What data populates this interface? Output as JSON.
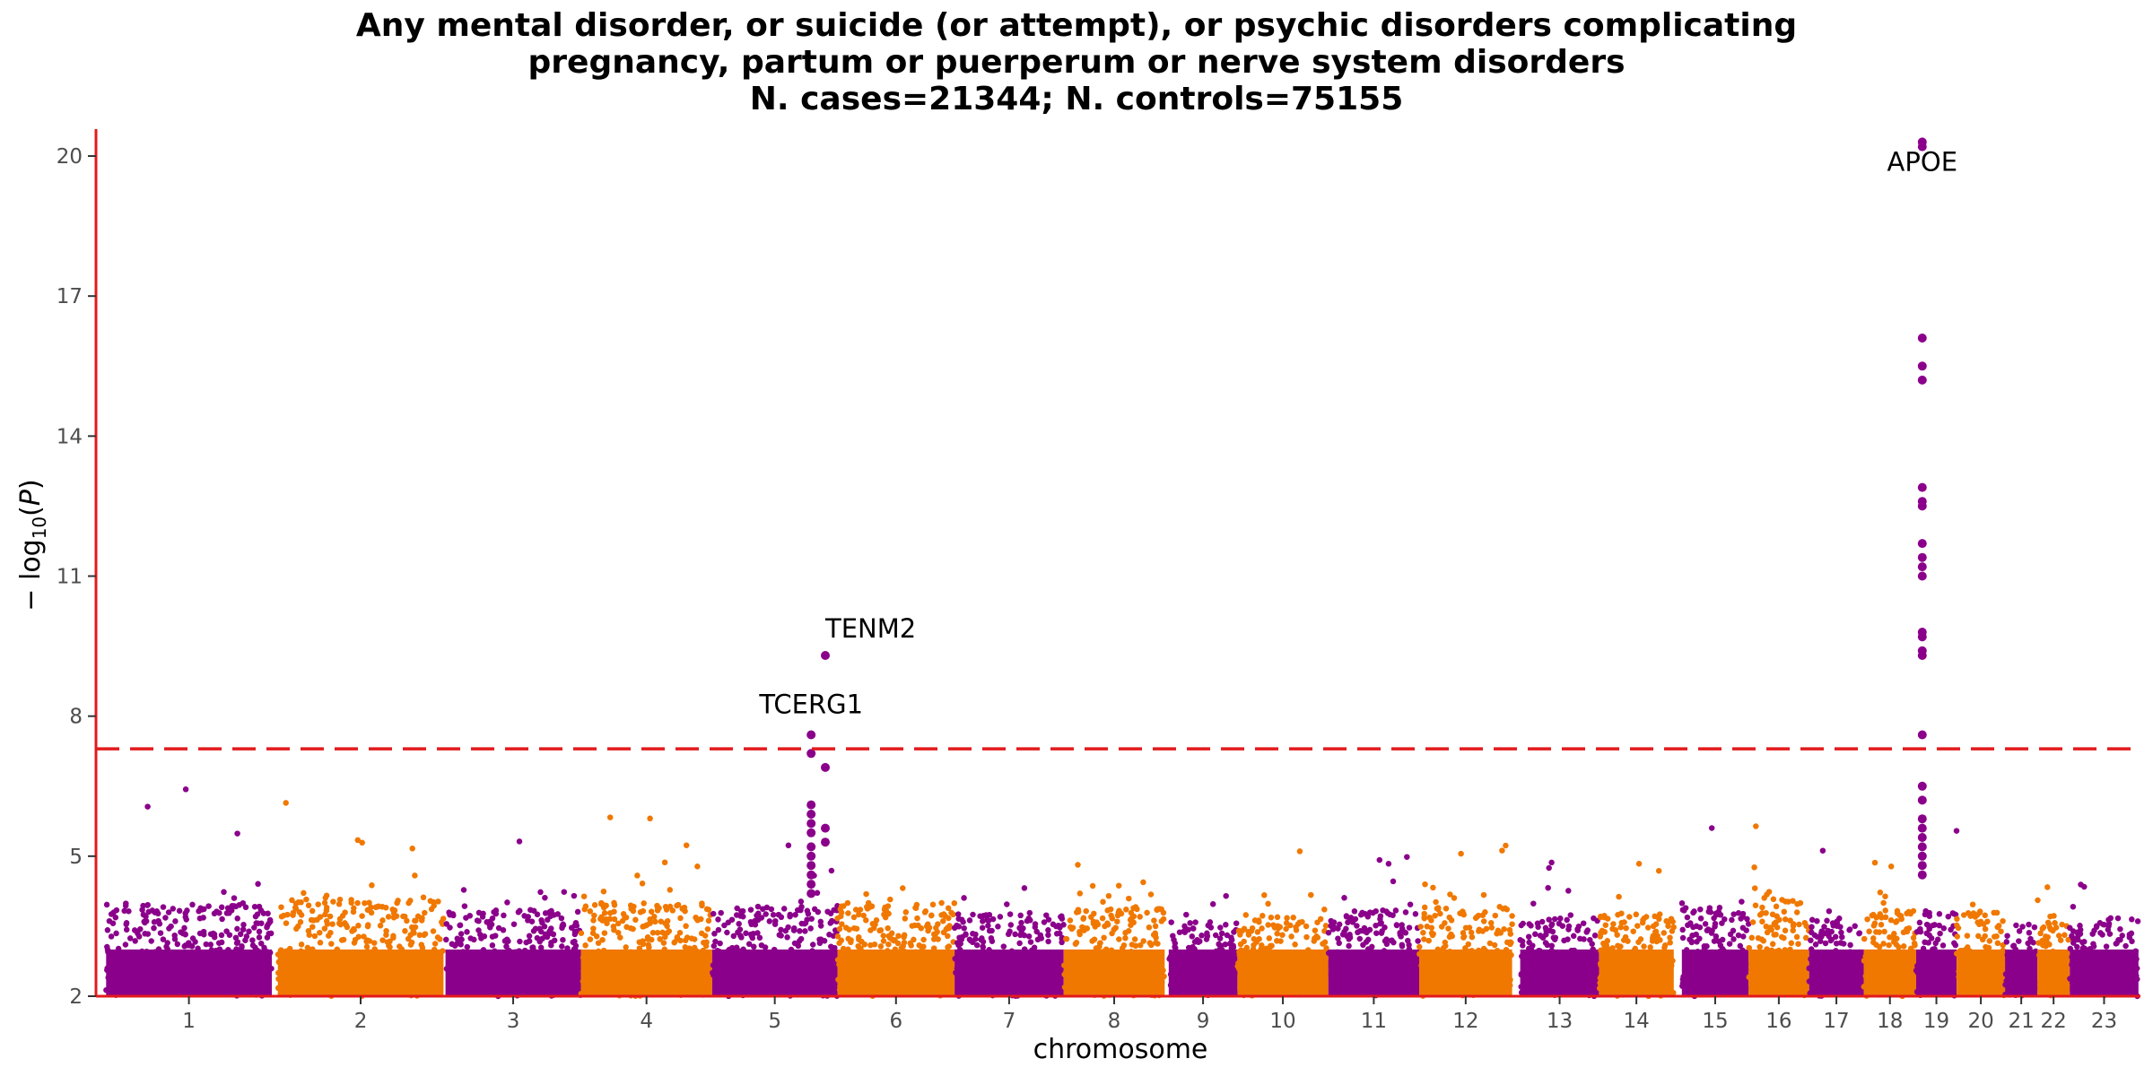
{
  "chart_data": {
    "type": "scatter",
    "subtype": "manhattan",
    "title_lines": [
      "Any mental disorder, or suicide (or attempt), or psychic disorders complicating",
      "pregnancy, partum or puerperum or nerve system disorders",
      "N. cases=21344; N. controls=75155"
    ],
    "xlabel": "chromosome",
    "ylabel_prefix": "− log",
    "ylabel_sub": "10",
    "ylabel_var": "P",
    "ylim": [
      2,
      20.5
    ],
    "yticks": [
      2,
      5,
      8,
      11,
      14,
      17,
      20
    ],
    "significance_line": 7.3,
    "colors": {
      "odd": "#8b008b",
      "even": "#f07800",
      "threshold": "#e31a1c",
      "axis": "#e31a1c"
    },
    "chromosomes": [
      {
        "label": "1",
        "range": [
          0.0,
          8.2
        ],
        "bulk": 4.5,
        "tail": 6.5
      },
      {
        "label": "2",
        "range": [
          8.5,
          16.7
        ],
        "bulk": 4.6,
        "tail": 6.7
      },
      {
        "label": "3",
        "range": [
          16.8,
          23.5
        ],
        "bulk": 4.3,
        "tail": 5.9
      },
      {
        "label": "4",
        "range": [
          23.5,
          30.0
        ],
        "bulk": 4.5,
        "tail": 6.0
      },
      {
        "label": "5",
        "range": [
          30.0,
          36.2
        ],
        "bulk": 4.4,
        "tail": 5.3
      },
      {
        "label": "6",
        "range": [
          36.2,
          42.0
        ],
        "bulk": 4.5,
        "tail": 6.2
      },
      {
        "label": "7",
        "range": [
          42.0,
          47.4
        ],
        "bulk": 4.2,
        "tail": 6.7
      },
      {
        "label": "8",
        "range": [
          47.4,
          52.4
        ],
        "bulk": 4.4,
        "tail": 5.2
      },
      {
        "label": "9",
        "range": [
          52.6,
          56.0
        ],
        "bulk": 4.0,
        "tail": 4.2
      },
      {
        "label": "10",
        "range": [
          56.0,
          60.5
        ],
        "bulk": 4.2,
        "tail": 5.5
      },
      {
        "label": "11",
        "range": [
          60.5,
          65.0
        ],
        "bulk": 4.3,
        "tail": 5.4
      },
      {
        "label": "12",
        "range": [
          65.0,
          69.6
        ],
        "bulk": 4.4,
        "tail": 5.6
      },
      {
        "label": "13",
        "range": [
          70.0,
          73.9
        ],
        "bulk": 4.1,
        "tail": 5.2
      },
      {
        "label": "14",
        "range": [
          73.9,
          77.6
        ],
        "bulk": 4.2,
        "tail": 5.2
      },
      {
        "label": "15",
        "range": [
          78.0,
          81.3
        ],
        "bulk": 4.4,
        "tail": 5.8
      },
      {
        "label": "16",
        "range": [
          81.3,
          84.3
        ],
        "bulk": 4.6,
        "tail": 5.8
      },
      {
        "label": "17",
        "range": [
          84.3,
          87.0
        ],
        "bulk": 4.1,
        "tail": 5.6
      },
      {
        "label": "18",
        "range": [
          87.0,
          89.6
        ],
        "bulk": 4.3,
        "tail": 5.4
      },
      {
        "label": "19",
        "range": [
          89.6,
          91.6
        ],
        "bulk": 4.3,
        "tail": 5.8
      },
      {
        "label": "20",
        "range": [
          91.6,
          94.0
        ],
        "bulk": 4.3,
        "tail": 5.8
      },
      {
        "label": "21",
        "range": [
          94.0,
          95.6
        ],
        "bulk": 4.0,
        "tail": 5.6
      },
      {
        "label": "22",
        "range": [
          95.6,
          97.2
        ],
        "bulk": 4.2,
        "tail": 5.4
      },
      {
        "label": "23",
        "range": [
          97.2,
          100.6
        ],
        "bulk": 4.1,
        "tail": 5.0
      }
    ],
    "xlim": [
      -0.5,
      100.7
    ],
    "peaks": [
      {
        "x": 34.9,
        "values": [
          7.6,
          7.2,
          6.1,
          5.9,
          5.7,
          5.5,
          5.2,
          5.0,
          4.8,
          4.6,
          4.4,
          4.2
        ]
      },
      {
        "x": 35.6,
        "values": [
          9.3,
          6.9,
          5.6,
          5.3
        ]
      },
      {
        "x": 89.9,
        "values": [
          20.3,
          20.2,
          16.1,
          15.5,
          15.2,
          12.9,
          12.6,
          12.5,
          11.7,
          11.4,
          11.2,
          11.0,
          9.8,
          9.7,
          9.4,
          9.3,
          7.6,
          6.5,
          6.2,
          5.8,
          5.6,
          5.4,
          5.2,
          5.0,
          4.8,
          4.6
        ]
      }
    ],
    "annotations": [
      {
        "text": "TENM2",
        "x": 35.6,
        "y": 9.3,
        "dx": 0,
        "dy": -20,
        "anchor": "start"
      },
      {
        "text": "TCERG1",
        "x": 34.9,
        "y": 7.6,
        "dx": 0,
        "dy": -24,
        "anchor": "middle"
      },
      {
        "text": "APOE",
        "x": 89.9,
        "y": 20.3,
        "dx": 0,
        "dy": 32,
        "anchor": "middle"
      }
    ]
  }
}
